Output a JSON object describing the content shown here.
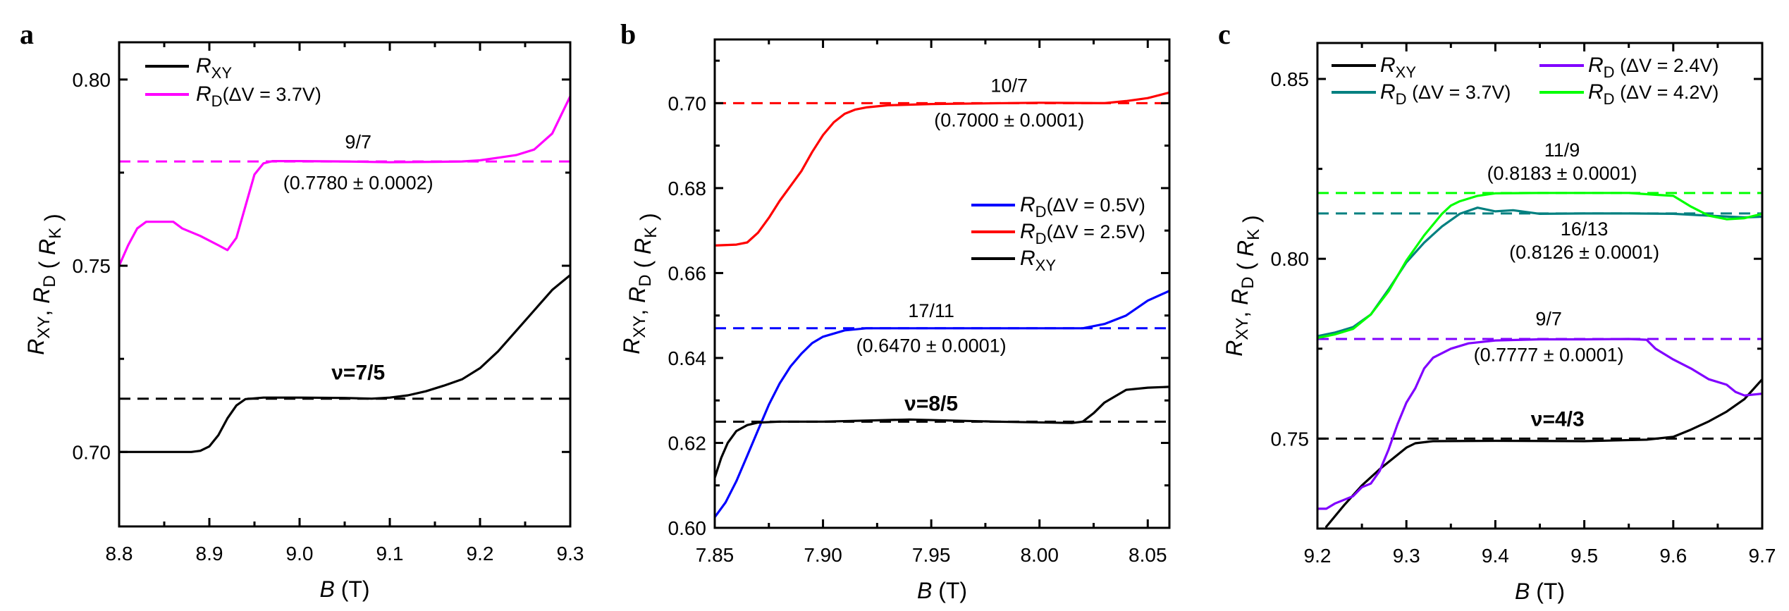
{
  "figure": {
    "panels": [
      "a",
      "b",
      "c"
    ]
  },
  "chart_data": [
    {
      "panel": "a",
      "type": "line",
      "title": "",
      "xlabel": "B (T)",
      "ylabel": "R_XY, R_D (R_K)",
      "xlim": [
        8.8,
        9.3
      ],
      "ylim": [
        0.68,
        0.81
      ],
      "xticks": [
        8.8,
        8.9,
        9.0,
        9.1,
        9.2,
        9.3
      ],
      "xtick_labels": [
        "8.8",
        "8.9",
        "9.0",
        "9.1",
        "9.2",
        "9.3"
      ],
      "yticks": [
        0.7,
        0.75,
        0.8
      ],
      "ytick_labels": [
        "0.70",
        "0.75",
        "0.80"
      ],
      "x_minor_step": 0.05,
      "y_minor_step": 0.025,
      "grid": false,
      "legend_placement": "top-left",
      "series": [
        {
          "name": "R_XY",
          "label_main": "R",
          "label_sub": "XY",
          "label_tail": "",
          "color": "#000000",
          "x": [
            8.8,
            8.85,
            8.88,
            8.89,
            8.9,
            8.91,
            8.92,
            8.93,
            8.94,
            8.96,
            9.0,
            9.05,
            9.08,
            9.1,
            9.12,
            9.14,
            9.16,
            9.18,
            9.2,
            9.22,
            9.24,
            9.26,
            9.28,
            9.3
          ],
          "y": [
            0.7,
            0.7,
            0.7,
            0.7003,
            0.7015,
            0.7045,
            0.709,
            0.7125,
            0.7142,
            0.7146,
            0.7146,
            0.7145,
            0.7143,
            0.7146,
            0.7152,
            0.7163,
            0.7178,
            0.7195,
            0.7225,
            0.727,
            0.7325,
            0.738,
            0.7435,
            0.7475
          ]
        },
        {
          "name": "R_D(ΔV = 3.7V)",
          "label_main": "R",
          "label_sub": "D",
          "label_tail": "(ΔV = 3.7V)",
          "color": "#ff00ff",
          "x": [
            8.8,
            8.81,
            8.82,
            8.83,
            8.85,
            8.86,
            8.87,
            8.89,
            8.91,
            8.92,
            8.93,
            8.94,
            8.95,
            8.96,
            8.97,
            9.0,
            9.05,
            9.1,
            9.15,
            9.18,
            9.2,
            9.22,
            9.24,
            9.26,
            9.28,
            9.3
          ],
          "y": [
            0.75,
            0.7555,
            0.76,
            0.7618,
            0.7618,
            0.7618,
            0.76,
            0.758,
            0.7555,
            0.7542,
            0.7575,
            0.766,
            0.7745,
            0.7775,
            0.7781,
            0.7781,
            0.778,
            0.7778,
            0.7779,
            0.778,
            0.7783,
            0.779,
            0.7797,
            0.7812,
            0.7855,
            0.7955
          ]
        }
      ],
      "reference_lines": [
        {
          "y": 0.778,
          "color": "#ff00ff",
          "style": "dashed"
        },
        {
          "y": 0.7143,
          "color": "#000000",
          "style": "dashed"
        }
      ],
      "annotations": [
        {
          "text": "9/7",
          "style": "normal"
        },
        {
          "text": "(0.7780 ± 0.0002)",
          "style": "normal"
        },
        {
          "text": "ν=7/5",
          "style": "bold"
        }
      ]
    },
    {
      "panel": "b",
      "type": "line",
      "title": "",
      "xlabel": "B (T)",
      "ylabel": "R_XY, R_D (R_K)",
      "xlim": [
        7.85,
        8.06
      ],
      "ylim": [
        0.6,
        0.715
      ],
      "xticks": [
        7.85,
        7.9,
        7.95,
        8.0,
        8.05
      ],
      "xtick_labels": [
        "7.85",
        "7.90",
        "7.95",
        "8.00",
        "8.05"
      ],
      "yticks": [
        0.6,
        0.62,
        0.64,
        0.66,
        0.68,
        0.7
      ],
      "ytick_labels": [
        "0.60",
        "0.62",
        "0.64",
        "0.66",
        "0.68",
        "0.70"
      ],
      "x_minor_step": 0.025,
      "y_minor_step": 0.01,
      "grid": false,
      "legend_placement": "middle-right",
      "series": [
        {
          "name": "R_D(ΔV = 0.5V)",
          "label_main": "R",
          "label_sub": "D",
          "label_tail": "(ΔV = 0.5V)",
          "color": "#0000ff",
          "x": [
            7.85,
            7.855,
            7.86,
            7.865,
            7.87,
            7.875,
            7.88,
            7.885,
            7.89,
            7.895,
            7.9,
            7.91,
            7.92,
            7.95,
            8.0,
            8.02,
            8.03,
            8.04,
            8.05,
            8.06
          ],
          "y": [
            0.6025,
            0.606,
            0.611,
            0.617,
            0.623,
            0.629,
            0.634,
            0.638,
            0.641,
            0.6435,
            0.645,
            0.6465,
            0.647,
            0.647,
            0.647,
            0.647,
            0.648,
            0.65,
            0.6535,
            0.6558
          ]
        },
        {
          "name": "R_D(ΔV = 2.5V)",
          "label_main": "R",
          "label_sub": "D",
          "label_tail": "(ΔV = 2.5V)",
          "color": "#ff0000",
          "x": [
            7.85,
            7.86,
            7.865,
            7.87,
            7.875,
            7.88,
            7.885,
            7.89,
            7.895,
            7.9,
            7.905,
            7.91,
            7.915,
            7.92,
            7.93,
            7.95,
            8.0,
            8.03,
            8.04,
            8.05,
            8.06
          ],
          "y": [
            0.6665,
            0.6667,
            0.6672,
            0.6695,
            0.673,
            0.677,
            0.6805,
            0.684,
            0.6885,
            0.6925,
            0.6955,
            0.6975,
            0.6985,
            0.699,
            0.6995,
            0.6998,
            0.7001,
            0.7,
            0.7005,
            0.7012,
            0.7025
          ]
        },
        {
          "name": "R_XY",
          "label_main": "R",
          "label_sub": "XY",
          "label_tail": "",
          "color": "#000000",
          "x": [
            7.85,
            7.853,
            7.856,
            7.86,
            7.865,
            7.87,
            7.88,
            7.9,
            7.94,
            7.98,
            8.015,
            8.02,
            8.025,
            8.03,
            8.035,
            8.04,
            8.05,
            8.06
          ],
          "y": [
            0.6118,
            0.6165,
            0.62,
            0.6228,
            0.6242,
            0.6248,
            0.625,
            0.625,
            0.6255,
            0.625,
            0.6247,
            0.625,
            0.627,
            0.6295,
            0.631,
            0.6325,
            0.633,
            0.6332
          ]
        }
      ],
      "reference_lines": [
        {
          "y": 0.7,
          "color": "#ff0000",
          "style": "dashed"
        },
        {
          "y": 0.647,
          "color": "#0000ff",
          "style": "dashed"
        },
        {
          "y": 0.625,
          "color": "#000000",
          "style": "dashed"
        }
      ],
      "annotations": [
        {
          "text": "10/7",
          "style": "normal"
        },
        {
          "text": "(0.7000 ± 0.0001)",
          "style": "normal"
        },
        {
          "text": "17/11",
          "style": "normal"
        },
        {
          "text": "(0.6470 ± 0.0001)",
          "style": "normal"
        },
        {
          "text": "ν=8/5",
          "style": "bold"
        }
      ]
    },
    {
      "panel": "c",
      "type": "line",
      "title": "",
      "xlabel": "B (T)",
      "ylabel": "R_XY, R_D (R_K)",
      "xlim": [
        9.2,
        9.7
      ],
      "ylim": [
        0.725,
        0.86
      ],
      "xticks": [
        9.2,
        9.3,
        9.4,
        9.5,
        9.6,
        9.7
      ],
      "xtick_labels": [
        "9.2",
        "9.3",
        "9.4",
        "9.5",
        "9.6",
        "9.7"
      ],
      "yticks": [
        0.75,
        0.8,
        0.85
      ],
      "ytick_labels": [
        "0.75",
        "0.80",
        "0.85"
      ],
      "x_minor_step": 0.05,
      "y_minor_step": 0.025,
      "grid": false,
      "legend_placement": "top (two columns)",
      "series": [
        {
          "name": "R_XY",
          "label_main": "R",
          "label_sub": "XY",
          "label_tail": "",
          "color": "#000000",
          "x": [
            9.21,
            9.23,
            9.25,
            9.27,
            9.29,
            9.3,
            9.31,
            9.33,
            9.4,
            9.5,
            9.57,
            9.6,
            9.62,
            9.64,
            9.66,
            9.68,
            9.7
          ],
          "y": [
            0.7255,
            0.7315,
            0.737,
            0.7415,
            0.7455,
            0.7475,
            0.7487,
            0.7493,
            0.7494,
            0.7493,
            0.7497,
            0.7505,
            0.7525,
            0.7548,
            0.7575,
            0.761,
            0.7665
          ]
        },
        {
          "name": "R_D (ΔV = 3.7V)",
          "label_main": "R",
          "label_sub": "D",
          "label_tail": " (ΔV = 3.7V)",
          "color": "#008080",
          "x": [
            9.2,
            9.22,
            9.24,
            9.26,
            9.28,
            9.3,
            9.32,
            9.34,
            9.36,
            9.38,
            9.4,
            9.42,
            9.45,
            9.5,
            9.55,
            9.6,
            9.64,
            9.68,
            9.7
          ],
          "y": [
            0.7785,
            0.7795,
            0.781,
            0.7845,
            0.7915,
            0.799,
            0.8045,
            0.809,
            0.8125,
            0.8142,
            0.8132,
            0.8135,
            0.8125,
            0.8126,
            0.8126,
            0.8125,
            0.812,
            0.8115,
            0.8117
          ]
        },
        {
          "name": "R_D (ΔV = 2.4V)",
          "label_main": "R",
          "label_sub": "D",
          "label_tail": " (ΔV = 2.4V)",
          "color": "#8000ff",
          "x": [
            9.2,
            9.21,
            9.22,
            9.23,
            9.24,
            9.25,
            9.26,
            9.27,
            9.28,
            9.29,
            9.3,
            9.31,
            9.32,
            9.33,
            9.35,
            9.37,
            9.4,
            9.45,
            9.5,
            9.55,
            9.57,
            9.58,
            9.6,
            9.62,
            9.64,
            9.66,
            9.67,
            9.68,
            9.7
          ],
          "y": [
            0.7305,
            0.7305,
            0.732,
            0.733,
            0.734,
            0.7365,
            0.7375,
            0.741,
            0.747,
            0.754,
            0.76,
            0.764,
            0.7695,
            0.7725,
            0.775,
            0.7765,
            0.7773,
            0.7776,
            0.7776,
            0.7777,
            0.7775,
            0.775,
            0.772,
            0.7695,
            0.7665,
            0.765,
            0.763,
            0.762,
            0.7625
          ]
        },
        {
          "name": "R_D (ΔV = 4.2V)",
          "label_main": "R",
          "label_sub": "D",
          "label_tail": " (ΔV = 4.2V)",
          "color": "#00ff00",
          "x": [
            9.2,
            9.22,
            9.24,
            9.26,
            9.28,
            9.3,
            9.32,
            9.34,
            9.35,
            9.36,
            9.38,
            9.4,
            9.45,
            9.5,
            9.55,
            9.58,
            9.6,
            9.62,
            9.64,
            9.66,
            9.68,
            9.7
          ],
          "y": [
            0.778,
            0.779,
            0.7805,
            0.7845,
            0.791,
            0.7995,
            0.8065,
            0.8125,
            0.8148,
            0.816,
            0.8175,
            0.8182,
            0.8183,
            0.8183,
            0.8183,
            0.8178,
            0.8175,
            0.8145,
            0.812,
            0.811,
            0.8113,
            0.8125
          ]
        }
      ],
      "reference_lines": [
        {
          "y": 0.8183,
          "color": "#00ff00",
          "style": "dashed"
        },
        {
          "y": 0.8126,
          "color": "#008080",
          "style": "dashed"
        },
        {
          "y": 0.7777,
          "color": "#8000ff",
          "style": "dashed"
        },
        {
          "y": 0.75,
          "color": "#000000",
          "style": "dashed"
        }
      ],
      "annotations": [
        {
          "text": "11/9",
          "style": "normal"
        },
        {
          "text": "(0.8183 ± 0.0001)",
          "style": "normal"
        },
        {
          "text": "16/13",
          "style": "normal"
        },
        {
          "text": "(0.8126 ± 0.0001)",
          "style": "normal"
        },
        {
          "text": "9/7",
          "style": "normal"
        },
        {
          "text": "(0.7777 ± 0.0001)",
          "style": "normal"
        },
        {
          "text": "ν=4/3",
          "style": "bold"
        }
      ]
    }
  ]
}
